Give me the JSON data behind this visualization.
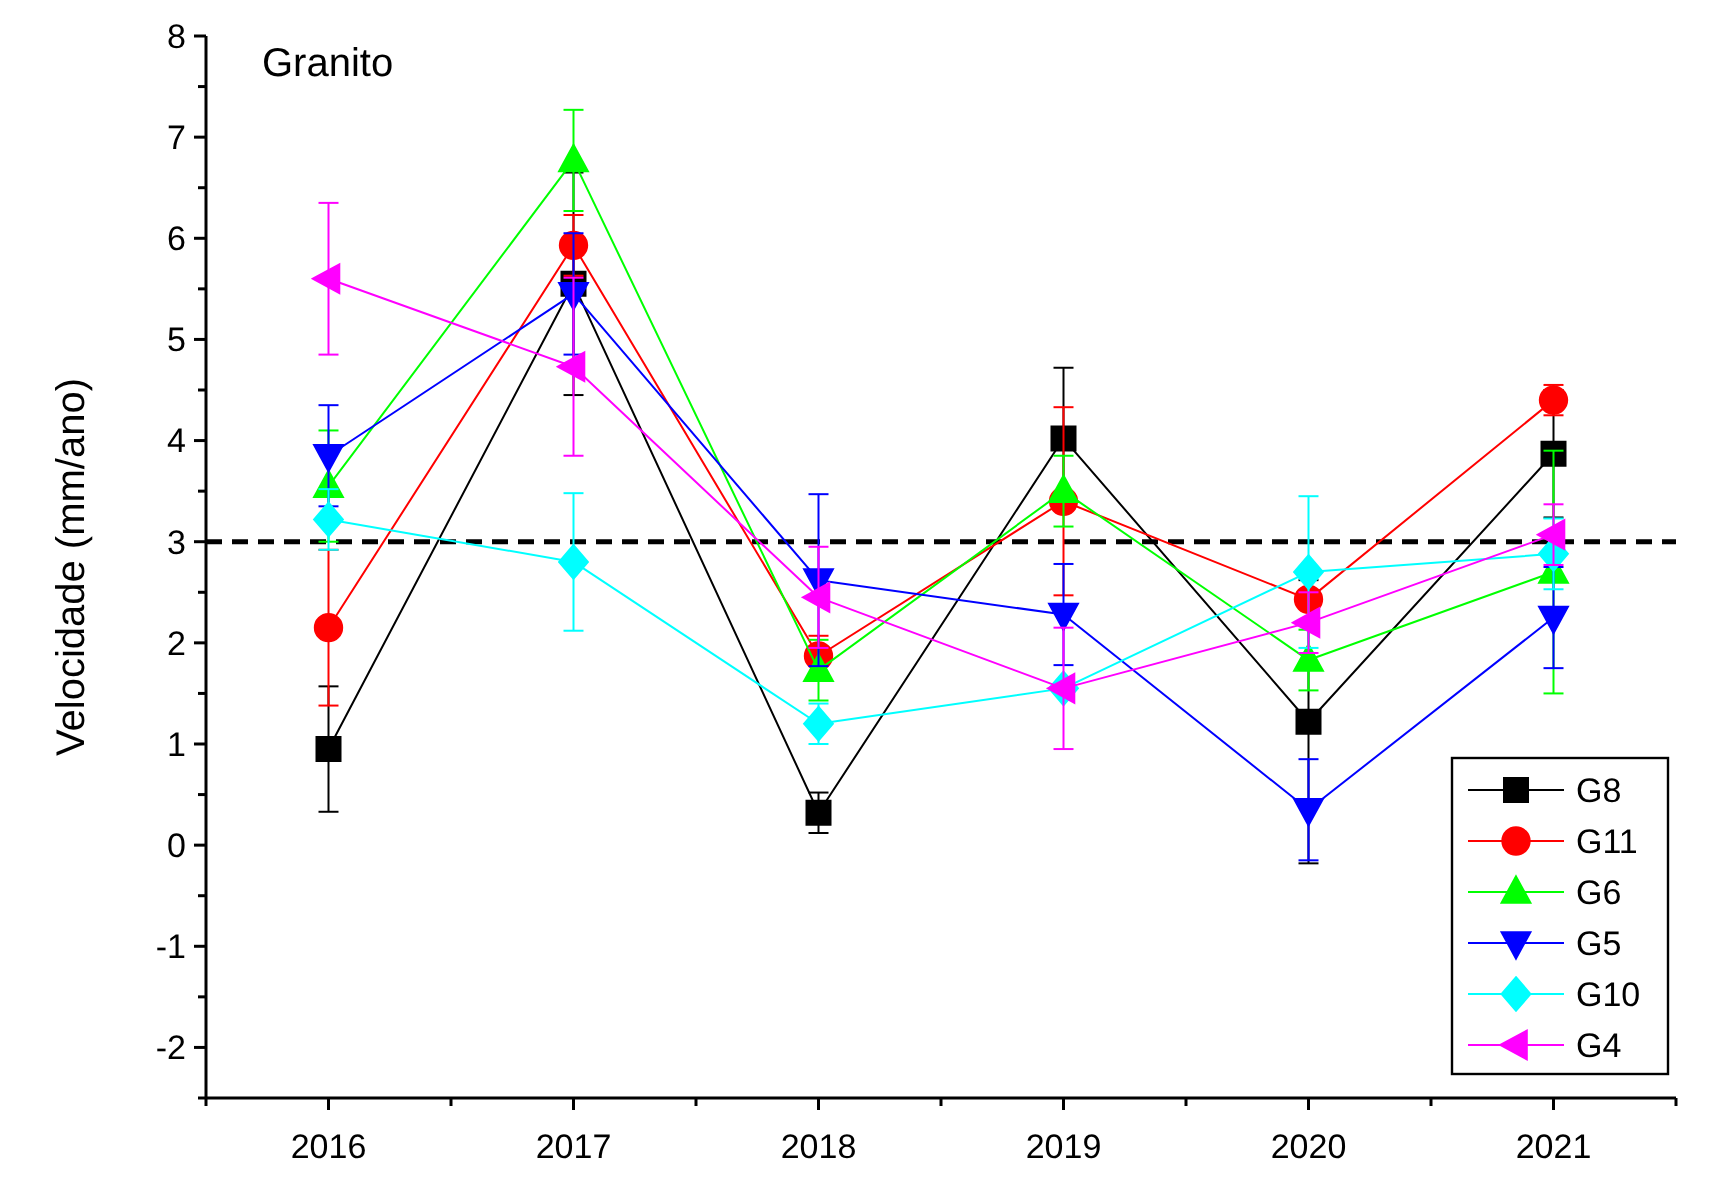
{
  "chart_data": {
    "type": "line",
    "title": "Granito",
    "ylabel": "Velocidade (mm/ano)",
    "x": [
      2016,
      2017,
      2018,
      2019,
      2020,
      2021
    ],
    "xlim": [
      2015.5,
      2021.5
    ],
    "xticks": [
      2016,
      2017,
      2018,
      2019,
      2020,
      2021,
      {
        "value": 2015.5,
        "label": null
      },
      {
        "value": 2016.5,
        "label": null
      },
      {
        "value": 2017.5,
        "label": null
      },
      {
        "value": 2018.5,
        "label": null
      },
      {
        "value": 2019.5,
        "label": null
      },
      {
        "value": 2020.5,
        "label": null
      },
      {
        "value": 2021.5,
        "label": null
      }
    ],
    "ylim": [
      -2.5,
      8
    ],
    "yticks": [
      -2,
      -1,
      0,
      1,
      2,
      3,
      4,
      5,
      6,
      7,
      8,
      {
        "value": -2.5,
        "label": null
      },
      {
        "value": -1.5,
        "label": null
      },
      {
        "value": -0.5,
        "label": null
      },
      {
        "value": 0.5,
        "label": null
      },
      {
        "value": 1.5,
        "label": null
      },
      {
        "value": 2.5,
        "label": null
      },
      {
        "value": 3.5,
        "label": null
      },
      {
        "value": 4.5,
        "label": null
      },
      {
        "value": 5.5,
        "label": null
      },
      {
        "value": 6.5,
        "label": null
      },
      {
        "value": 7.5,
        "label": null
      }
    ],
    "grid": false,
    "legend": "bottom right",
    "line_style": "solid",
    "ref_lines": [
      {
        "axis": "y",
        "value": 3,
        "color": "#000000",
        "line_style": "dashed"
      }
    ],
    "series": [
      {
        "name": "G8",
        "color": "#000000",
        "marker": "square",
        "values": [
          0.95,
          5.55,
          0.32,
          4.02,
          1.22,
          3.87
        ],
        "errors": [
          0.62,
          1.1,
          0.2,
          0.7,
          1.4,
          0.63
        ]
      },
      {
        "name": "G11",
        "color": "#ff0000",
        "marker": "circle",
        "values": [
          2.15,
          5.93,
          1.87,
          3.4,
          2.43,
          4.4
        ],
        "errors": [
          0.77,
          0.3,
          0.2,
          0.93,
          null,
          0.15
        ]
      },
      {
        "name": "G6",
        "color": "#00ff00",
        "marker": "triangle",
        "values": [
          3.55,
          6.77,
          1.73,
          3.5,
          1.83,
          2.7
        ],
        "errors": [
          0.55,
          0.5,
          0.3,
          0.35,
          0.3,
          1.2
        ]
      },
      {
        "name": "G5",
        "color": "#0000ff",
        "marker": "triangle-down",
        "values": [
          3.85,
          5.45,
          2.62,
          2.28,
          0.35,
          2.25
        ],
        "errors": [
          0.5,
          0.6,
          0.85,
          0.5,
          0.5,
          0.5
        ]
      },
      {
        "name": "G10",
        "color": "#00ffff",
        "marker": "diamond",
        "values": [
          3.22,
          2.8,
          1.2,
          1.55,
          2.7,
          2.88
        ],
        "errors": [
          0.3,
          0.68,
          0.2,
          null,
          0.75,
          0.35
        ]
      },
      {
        "name": "G4",
        "color": "#ff00ff",
        "marker": "triangle-left",
        "values": [
          5.6,
          4.73,
          2.45,
          1.55,
          2.2,
          3.07
        ],
        "errors": [
          0.75,
          0.88,
          0.5,
          0.6,
          0.3,
          0.3
        ]
      }
    ]
  }
}
